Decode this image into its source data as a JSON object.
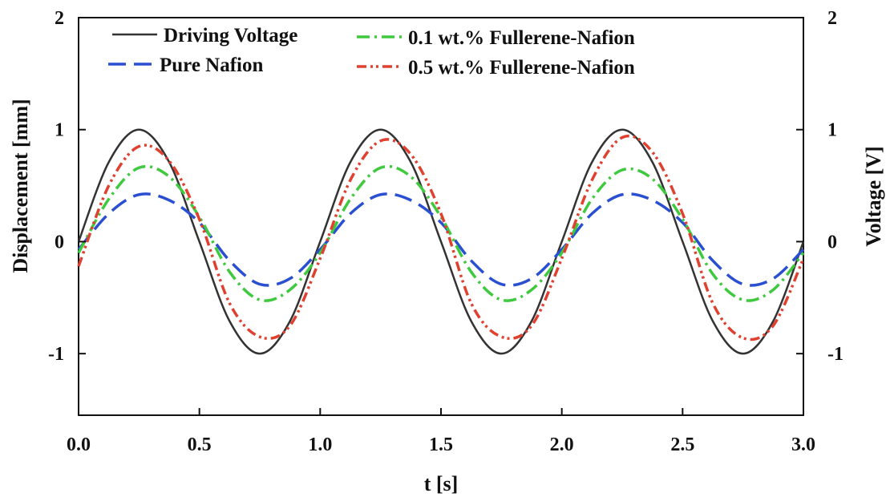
{
  "chart_data": {
    "type": "line",
    "title": "",
    "xlabel": "t [s]",
    "ylabel": "Displacement  [mm]",
    "y2label": "Voltage [V]",
    "xlim": [
      0,
      3
    ],
    "ylim": [
      -1.55,
      2
    ],
    "y2lim": [
      -1.55,
      2
    ],
    "xticks": [
      0,
      0.5,
      1,
      1.5,
      2,
      2.5,
      3
    ],
    "xtick_labels": [
      "0.0",
      "0.5",
      "1.0",
      "1.5",
      "2.0",
      "2.5",
      "3.0"
    ],
    "yticks": [
      -1,
      0,
      1,
      2
    ],
    "ytick_labels": [
      "-1",
      "0",
      "1",
      "2"
    ],
    "y2ticks": [
      -1,
      0,
      1,
      2
    ],
    "y2tick_labels": [
      "-1",
      "0",
      "1",
      "2"
    ],
    "grid": false,
    "legend_position": "top",
    "series": [
      {
        "name": "Driving Voltage",
        "color": "#333333",
        "dash": "solid",
        "x": [
          0,
          0.125,
          0.25,
          0.375,
          0.5,
          0.625,
          0.75,
          0.875,
          1.0,
          1.125,
          1.25,
          1.375,
          1.5,
          1.625,
          1.75,
          1.875,
          2.0,
          2.125,
          2.25,
          2.375,
          2.5,
          2.625,
          2.75,
          2.875,
          3.0
        ],
        "y": [
          0,
          0.71,
          1.0,
          0.71,
          0,
          -0.71,
          -1.0,
          -0.71,
          0,
          0.71,
          1.0,
          0.71,
          0,
          -0.71,
          -1.0,
          -0.71,
          0,
          0.71,
          1.0,
          0.71,
          0,
          -0.71,
          -1.0,
          -0.71,
          0
        ]
      },
      {
        "name": "Pure Nafion",
        "color": "#2a4fd0",
        "dash": "long-dash",
        "x": [
          0,
          0.125,
          0.25,
          0.375,
          0.5,
          0.625,
          0.75,
          0.875,
          1.0,
          1.125,
          1.25,
          1.375,
          1.5,
          1.625,
          1.75,
          1.875,
          2.0,
          2.125,
          2.25,
          2.375,
          2.5,
          2.625,
          2.75,
          2.875,
          3.0
        ],
        "y": [
          -0.07,
          0.25,
          0.42,
          0.37,
          0.17,
          -0.17,
          -0.38,
          -0.33,
          -0.07,
          0.25,
          0.42,
          0.37,
          0.17,
          -0.17,
          -0.38,
          -0.33,
          -0.07,
          0.25,
          0.42,
          0.37,
          0.17,
          -0.17,
          -0.38,
          -0.33,
          -0.07
        ]
      },
      {
        "name": "0.1 wt.% Fullerene-Nafion",
        "color": "#3ec93e",
        "dash": "dash-dot",
        "x": [
          0,
          0.125,
          0.25,
          0.375,
          0.5,
          0.625,
          0.75,
          0.875,
          1.0,
          1.125,
          1.25,
          1.375,
          1.5,
          1.625,
          1.75,
          1.875,
          2.0,
          2.125,
          2.25,
          2.375,
          2.5,
          2.625,
          2.75,
          2.875,
          3.0
        ],
        "y": [
          -0.1,
          0.38,
          0.66,
          0.58,
          0.22,
          -0.27,
          -0.52,
          -0.43,
          -0.1,
          0.38,
          0.66,
          0.58,
          0.22,
          -0.27,
          -0.52,
          -0.43,
          -0.1,
          0.38,
          0.64,
          0.56,
          0.2,
          -0.29,
          -0.52,
          -0.43,
          -0.1
        ]
      },
      {
        "name": "0.5 wt.% Fullerene-Nafion",
        "color": "#e0402f",
        "dash": "dash-dot-dot",
        "x": [
          0,
          0.125,
          0.25,
          0.375,
          0.5,
          0.625,
          0.75,
          0.875,
          1.0,
          1.125,
          1.25,
          1.375,
          1.5,
          1.625,
          1.75,
          1.875,
          2.0,
          2.125,
          2.25,
          2.375,
          2.5,
          2.625,
          2.75,
          2.875,
          3.0
        ],
        "y": [
          -0.22,
          0.5,
          0.85,
          0.72,
          0.2,
          -0.55,
          -0.85,
          -0.75,
          -0.15,
          0.55,
          0.9,
          0.78,
          0.25,
          -0.55,
          -0.85,
          -0.75,
          -0.15,
          0.55,
          0.93,
          0.8,
          0.25,
          -0.55,
          -0.86,
          -0.75,
          -0.15
        ]
      }
    ]
  }
}
